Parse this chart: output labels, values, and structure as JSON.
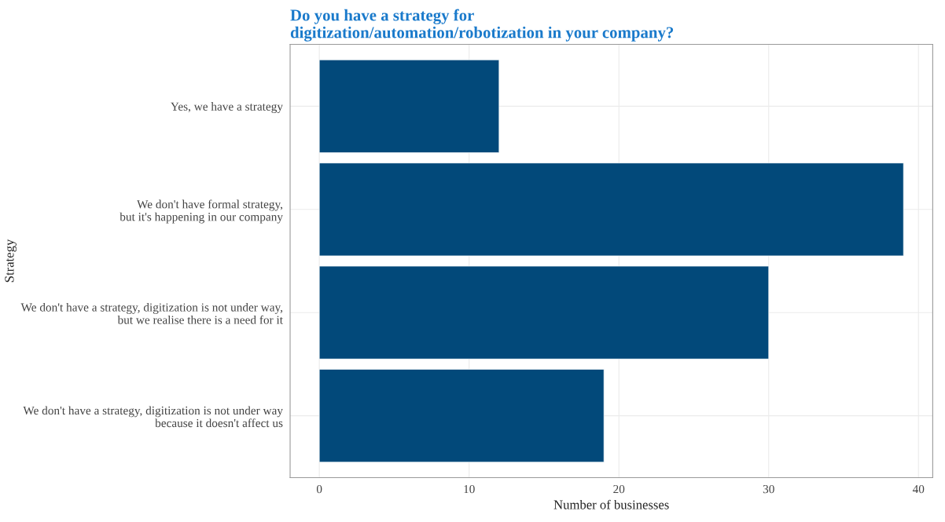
{
  "chart_data": {
    "type": "bar",
    "orientation": "horizontal",
    "title": "Do you have a strategy for\ndigitization/automation/robotization in your company?",
    "xlabel": "Number of businesses",
    "ylabel": "Strategy",
    "categories": [
      "Yes, we have a strategy",
      "We don't have formal strategy,\nbut it's happening in our company",
      "We don't have a strategy, digitization is not under way,\nbut we realise there is a need for it",
      "We don't have a strategy, digitization is not under way\nbecause it doesn't affect us"
    ],
    "values": [
      12,
      39,
      30,
      19
    ],
    "color": "#02497a",
    "xlim": [
      -1.95,
      40.95
    ],
    "xticks": [
      0,
      10,
      20,
      30,
      40
    ],
    "grid": true
  }
}
